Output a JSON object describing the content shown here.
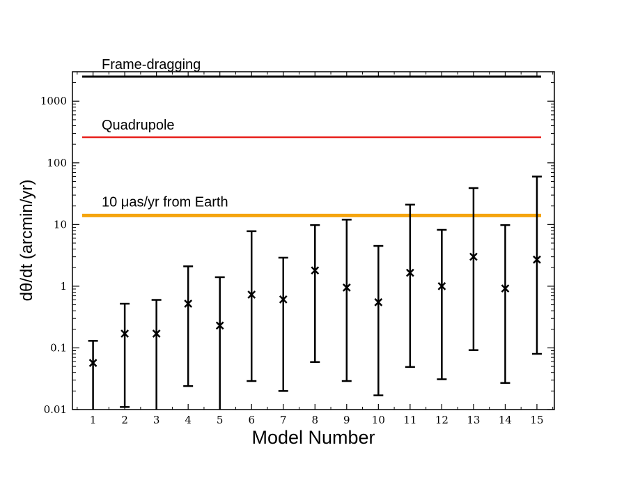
{
  "chart_data": {
    "type": "scatter",
    "xlabel": "Model Number",
    "ylabel": "dθ/dt (arcmin/yr)",
    "y_scale": "log",
    "xlim": [
      0.35,
      15.55
    ],
    "ylim": [
      0.01,
      3000
    ],
    "grid": false,
    "x_ticks": [
      1,
      2,
      3,
      4,
      5,
      6,
      7,
      8,
      9,
      10,
      11,
      12,
      13,
      14,
      15
    ],
    "x_tick_labels": [
      "1",
      "2",
      "3",
      "4",
      "5",
      "6",
      "7",
      "8",
      "9",
      "10",
      "11",
      "12",
      "13",
      "14",
      "15"
    ],
    "y_ticks": [
      0.01,
      0.1,
      1,
      10,
      100,
      1000
    ],
    "y_tick_labels": [
      "0.01",
      "0.1",
      "1",
      "10",
      "100",
      "1000"
    ],
    "reference_lines": [
      {
        "label": "Frame-dragging",
        "y": 2500,
        "color": "#000000"
      },
      {
        "label": "Quadrupole",
        "y": 260,
        "color": "#e8201c"
      },
      {
        "label": "10 μas/yr from Earth",
        "y": 14,
        "color": "#f5a40e"
      }
    ],
    "series": [
      {
        "marker": "x",
        "color": "#000000",
        "points": [
          {
            "x": 1,
            "y": 0.057,
            "y_low": 0.01,
            "y_high": 0.13
          },
          {
            "x": 2,
            "y": 0.17,
            "y_low": 0.011,
            "y_high": 0.52
          },
          {
            "x": 3,
            "y": 0.17,
            "y_low": 0.01,
            "y_high": 0.6
          },
          {
            "x": 4,
            "y": 0.52,
            "y_low": 0.024,
            "y_high": 2.1
          },
          {
            "x": 5,
            "y": 0.23,
            "y_low": 0.01,
            "y_high": 1.4
          },
          {
            "x": 6,
            "y": 0.73,
            "y_low": 0.029,
            "y_high": 7.8
          },
          {
            "x": 7,
            "y": 0.61,
            "y_low": 0.02,
            "y_high": 2.9
          },
          {
            "x": 8,
            "y": 1.8,
            "y_low": 0.059,
            "y_high": 9.8
          },
          {
            "x": 9,
            "y": 0.95,
            "y_low": 0.029,
            "y_high": 12
          },
          {
            "x": 10,
            "y": 0.55,
            "y_low": 0.017,
            "y_high": 4.5
          },
          {
            "x": 11,
            "y": 1.65,
            "y_low": 0.049,
            "y_high": 21
          },
          {
            "x": 12,
            "y": 1.0,
            "y_low": 0.031,
            "y_high": 8.2
          },
          {
            "x": 13,
            "y": 3.0,
            "y_low": 0.092,
            "y_high": 39
          },
          {
            "x": 14,
            "y": 0.92,
            "y_low": 0.027,
            "y_high": 9.8
          },
          {
            "x": 15,
            "y": 2.7,
            "y_low": 0.08,
            "y_high": 60
          }
        ]
      }
    ]
  }
}
